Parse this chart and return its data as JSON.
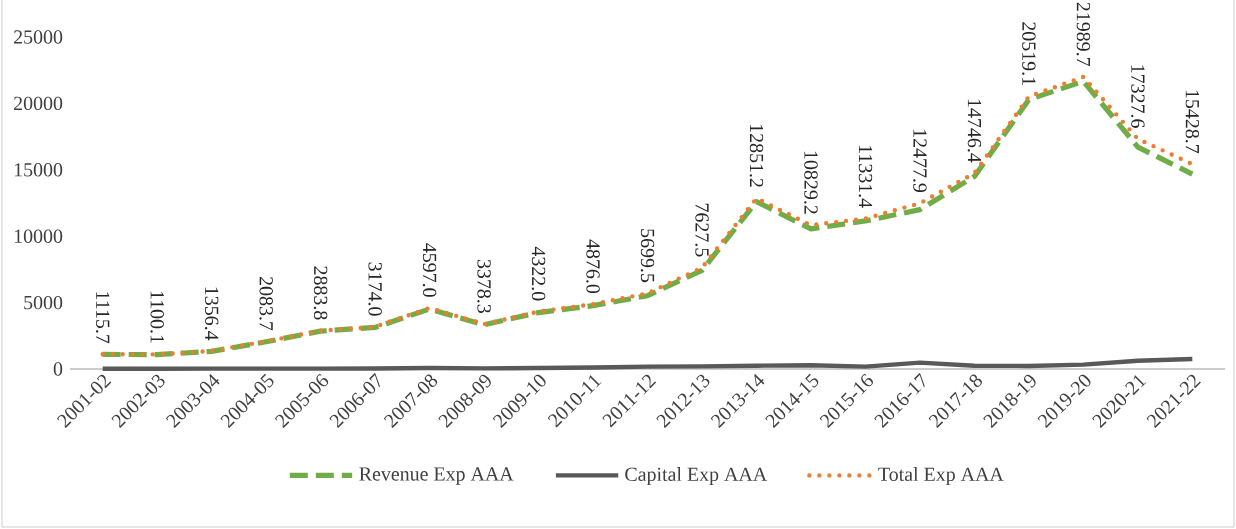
{
  "chart_data": {
    "type": "line",
    "categories": [
      "2001-02",
      "2002-03",
      "2003-04",
      "2004-05",
      "2005-06",
      "2006-07",
      "2007-08",
      "2008-09",
      "2009-10",
      "2010-11",
      "2011-12",
      "2012-13",
      "2013-14",
      "2014-15",
      "2015-16",
      "2016-17",
      "2017-18",
      "2018-19",
      "2019-20",
      "2020-21",
      "2021-22"
    ],
    "series": [
      {
        "name": "Revenue Exp AAA",
        "color": "#70ad47",
        "line_style": "dashed",
        "values": [
          1100,
          1080,
          1330,
          2050,
          2850,
          3130,
          4520,
          3330,
          4250,
          4770,
          5520,
          7430,
          12600,
          10550,
          11150,
          12000,
          14500,
          20290,
          21660,
          16710,
          14680
        ]
      },
      {
        "name": "Capital Exp AAA",
        "color": "#595959",
        "line_style": "solid",
        "values": [
          20,
          20,
          30,
          30,
          30,
          40,
          80,
          50,
          70,
          110,
          180,
          200,
          250,
          280,
          180,
          480,
          250,
          230,
          330,
          620,
          750
        ]
      },
      {
        "name": "Total Exp AAA",
        "color": "#ed7d31",
        "line_style": "dotted",
        "values": [
          1115.7,
          1100.1,
          1356.4,
          2083.7,
          2883.8,
          3174.0,
          4597.0,
          3378.3,
          4322.0,
          4876.0,
          5699.5,
          7627.5,
          12851.2,
          10829.2,
          11331.4,
          12477.9,
          14746.4,
          20519.1,
          21989.7,
          17327.6,
          15428.7
        ],
        "value_labels": [
          "1115.7",
          "1100.1",
          "1356.4",
          "2083.7",
          "2883.8",
          "3174.0",
          "4597.0",
          "3378.3",
          "4322.0",
          "4876.0",
          "5699.5",
          "7627.5",
          "12851.2",
          "10829.2",
          "11331.4",
          "12477.9",
          "14746.4",
          "20519.1",
          "21989.7",
          "17327.6",
          "15428.7"
        ]
      }
    ],
    "ylim": [
      0,
      25000
    ],
    "yticks": [
      0,
      5000,
      10000,
      15000,
      20000,
      25000
    ],
    "grid": false,
    "legend": "bottom",
    "marker": "none"
  }
}
